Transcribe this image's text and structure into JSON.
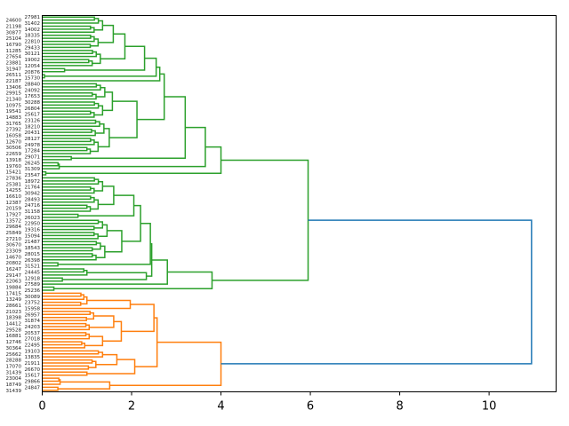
{
  "chart_data": {
    "type": "dendrogram",
    "orientation": "right",
    "title": "",
    "xlabel": "",
    "ylabel": "",
    "xlim": [
      0,
      11.5
    ],
    "xticks": [
      "0",
      "2",
      "4",
      "6",
      "8",
      "10"
    ],
    "xtick_values": [
      0,
      2,
      4,
      6,
      8,
      10
    ],
    "colors": {
      "above_threshold": "#1f77b4",
      "cluster_1": "#2ca02c",
      "cluster_2": "#ff7f0e"
    },
    "leaf_labels": [
      "27981",
      "24600",
      "31402",
      "21198",
      "14002",
      "30877",
      "18335",
      "25104",
      "22810",
      "16790",
      "29433",
      "11285",
      "30121",
      "27654",
      "19002",
      "23881",
      "12054",
      "31947",
      "20876",
      "26511",
      "15730",
      "22187",
      "28840",
      "13406",
      "24092",
      "29915",
      "17653",
      "21340",
      "30288",
      "10975",
      "26804",
      "19541",
      "25617",
      "14883",
      "23126",
      "31765",
      "18210",
      "27392",
      "20431",
      "16058",
      "28127",
      "12670",
      "24978",
      "30506",
      "17284",
      "22659",
      "29071",
      "13918",
      "26245",
      "19760",
      "31309",
      "15421",
      "23547",
      "27836",
      "18972",
      "25381",
      "21764",
      "14255",
      "30942",
      "16610",
      "28493",
      "12387",
      "24716",
      "20159",
      "31158",
      "17927",
      "26023",
      "13572",
      "22950",
      "29684",
      "19316",
      "25849",
      "15094",
      "27210",
      "21487",
      "30670",
      "18543",
      "23309",
      "28015",
      "14670",
      "26398",
      "20802",
      "31521",
      "16247",
      "24445",
      "29147",
      "12918",
      "22063",
      "27589",
      "19884",
      "25236",
      "17415",
      "30089",
      "13249",
      "23752",
      "28661",
      "15958",
      "21023",
      "26957",
      "18398",
      "31874",
      "14412",
      "24203",
      "29528",
      "20537",
      "16881",
      "27018",
      "12746",
      "22495",
      "30364",
      "19103",
      "25662",
      "13835",
      "28288",
      "21911",
      "17070",
      "26670",
      "31439",
      "15617",
      "23004",
      "29866",
      "18749",
      "24847",
      "31439"
    ],
    "tree": {
      "h": 10.95,
      "color": "#1f77b4",
      "c": [
        {
          "h": 5.95,
          "color": "#2ca02c",
          "c": [
            {
              "h": 4.0,
              "c": [
                {
                  "h": 3.65,
                  "c": [
                    {
                      "h": 3.2,
                      "c": [
                        {
                          "h": 2.73,
                          "c": [
                            {
                              "h": 2.63,
                              "c": [
                                {
                                  "h": 2.55,
                                  "c": [
                                    {
                                      "h": 2.29,
                                      "c": [
                                        {
                                          "h": 1.85,
                                          "c": [
                                            {
                                              "h": 1.59,
                                              "c": [
                                                {
                                                  "g": 6,
                                                  "h": 1.35
                                                },
                                                {
                                                  "g": 5,
                                                  "h": 1.25
                                                }
                                              ]
                                            },
                                            {
                                              "g": 6,
                                              "h": 1.3
                                            }
                                          ]
                                        },
                                        {
                                          "g": 2,
                                          "h": 0.5
                                        }
                                      ]
                                    },
                                    {
                                      "g": 2,
                                      "h": 0.05
                                    }
                                  ]
                                },
                                {
                                  "g": 1,
                                  "h": 0
                                }
                              ]
                            },
                            {
                              "h": 2.12,
                              "c": [
                                {
                                  "h": 1.57,
                                  "c": [
                                    {
                                      "g": 6,
                                      "h": 1.4
                                    },
                                    {
                                      "g": 6,
                                      "h": 1.35
                                    }
                                  ]
                                },
                                {
                                  "h": 1.5,
                                  "c": [
                                    {
                                      "g": 6,
                                      "h": 1.38
                                    },
                                    {
                                      "g": 6,
                                      "h": 1.25
                                    }
                                  ]
                                }
                              ]
                            }
                          ]
                        },
                        {
                          "g": 2,
                          "h": 0.65
                        }
                      ]
                    },
                    {
                      "g": 3,
                      "h": 0.38
                    }
                  ]
                },
                {
                  "g": 2,
                  "h": 0.08
                }
              ]
            },
            {
              "h": 3.8,
              "c": [
                {
                  "h": 2.8,
                  "c": [
                    {
                      "h": 2.45,
                      "c": [
                        {
                          "h": 2.42,
                          "c": [
                            {
                              "h": 2.2,
                              "c": [
                                {
                                  "h": 2.05,
                                  "c": [
                                    {
                                      "h": 1.6,
                                      "c": [
                                        {
                                          "g": 6,
                                          "h": 1.35
                                        },
                                        {
                                          "g": 6,
                                          "h": 1.25
                                        }
                                      ]
                                    },
                                    {
                                      "g": 2,
                                      "h": 0.8
                                    }
                                  ]
                                },
                                {
                                  "h": 1.78,
                                  "c": [
                                    {
                                      "g": 7,
                                      "h": 1.45
                                    },
                                    {
                                      "g": 7,
                                      "h": 1.4
                                    }
                                  ]
                                }
                              ]
                            },
                            {
                              "g": 2,
                              "h": 0.35
                            }
                          ]
                        },
                        {
                          "h": 2.33,
                          "c": [
                            {
                              "g": 3,
                              "h": 1.0
                            },
                            {
                              "g": 2,
                              "h": 0.45
                            }
                          ]
                        }
                      ]
                    },
                    {
                      "g": 1,
                      "h": 0
                    }
                  ]
                },
                {
                  "g": 2,
                  "h": 0.26
                }
              ]
            }
          ]
        },
        {
          "h": 4.0,
          "color": "#ff7f0e",
          "c": [
            {
              "h": 2.57,
              "c": [
                {
                  "h": 2.5,
                  "c": [
                    {
                      "h": 1.97,
                      "c": [
                        {
                          "g": 5,
                          "h": 1.0
                        },
                        {
                          "g": 1,
                          "h": 0
                        }
                      ]
                    },
                    {
                      "h": 1.77,
                      "c": [
                        {
                          "h": 1.6,
                          "c": [
                            {
                              "g": 4,
                              "h": 1.15
                            },
                            {
                              "g": 3,
                              "h": 1.05
                            }
                          ]
                        },
                        {
                          "h": 1.35,
                          "c": [
                            {
                              "g": 3,
                              "h": 1.05
                            },
                            {
                              "g": 3,
                              "h": 0.95
                            }
                          ]
                        }
                      ]
                    }
                  ]
                },
                {
                  "h": 2.07,
                  "c": [
                    {
                      "h": 1.67,
                      "c": [
                        {
                          "g": 3,
                          "h": 1.35
                        },
                        {
                          "g": 4,
                          "h": 1.2
                        }
                      ]
                    },
                    {
                      "g": 2,
                      "h": 1.0
                    }
                  ]
                }
              ]
            },
            {
              "h": 1.51,
              "c": [
                {
                  "g": 3,
                  "h": 0.4
                },
                {
                  "g": 2,
                  "h": 0.35
                }
              ]
            }
          ]
        }
      ]
    }
  }
}
